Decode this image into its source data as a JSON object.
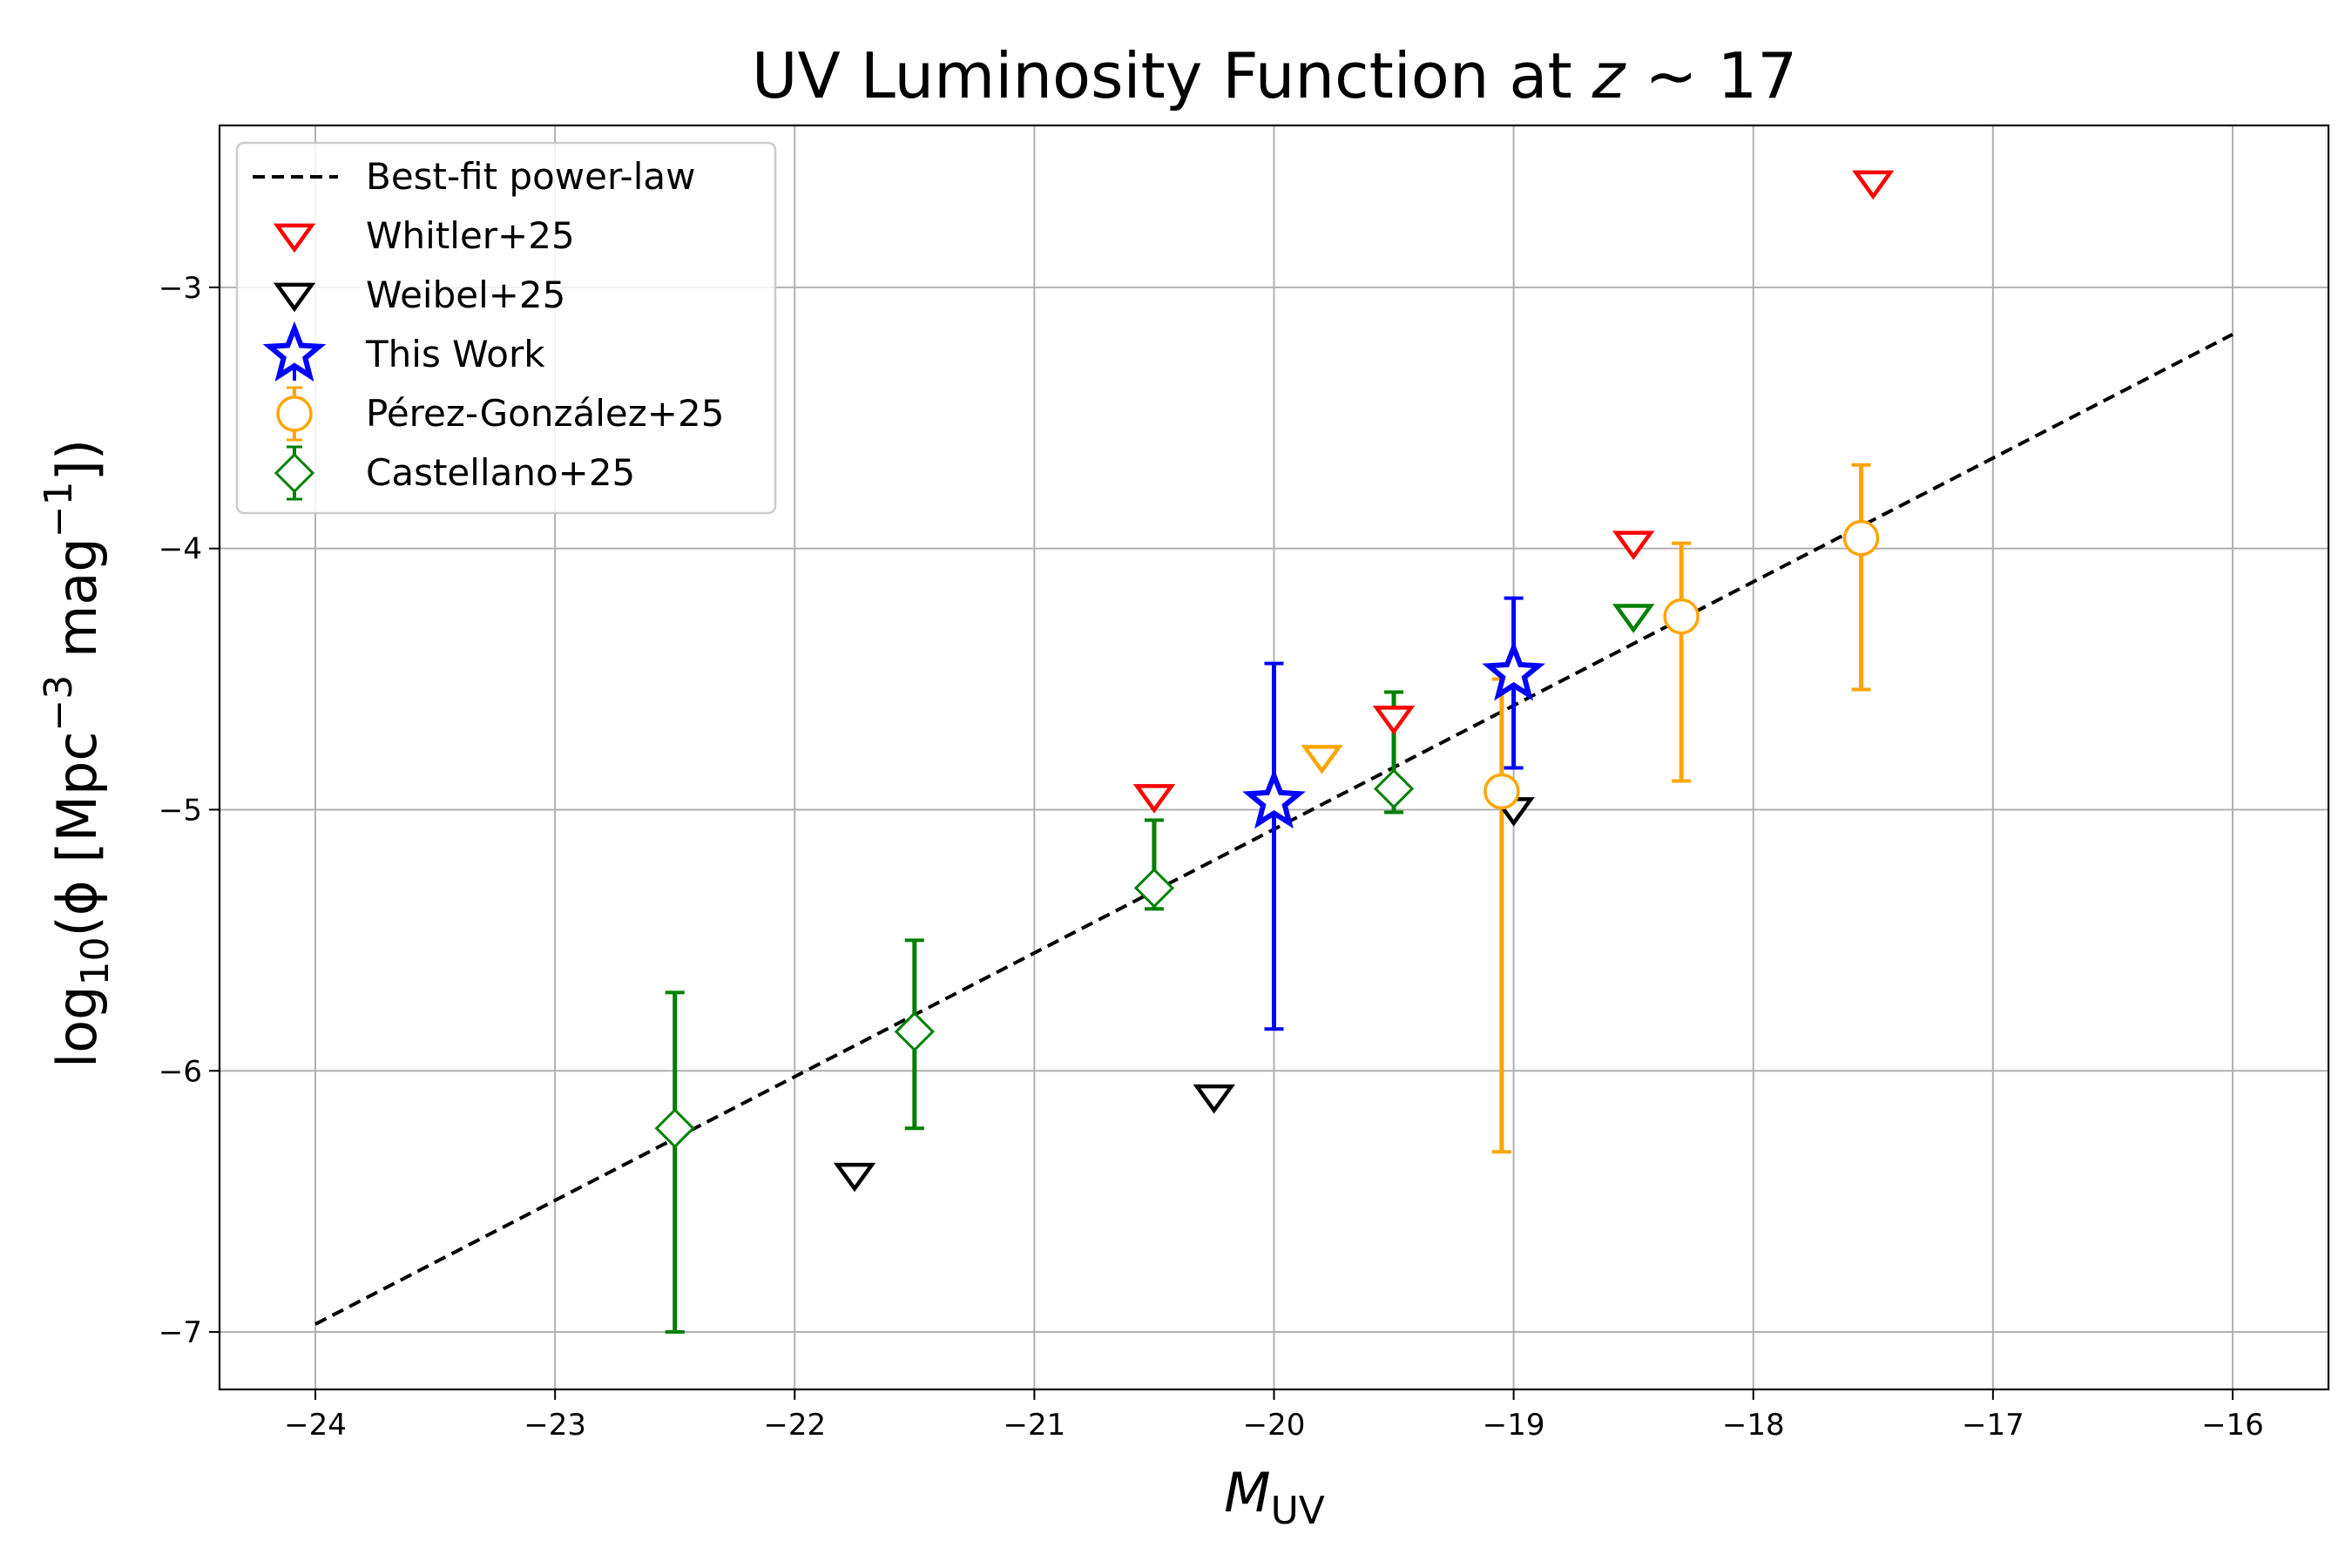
{
  "chart_data": {
    "type": "scatter",
    "title": "UV Luminosity Function at",
    "title_math": "z",
    "title_suffix": " ∼ 17",
    "xlabel": "M",
    "xlabel_sub": "UV",
    "ylabel_prefix": "log",
    "ylabel_sub": "10",
    "ylabel_body": "(ϕ [Mpc",
    "ylabel_sup1": "−3",
    "ylabel_mid": " mag",
    "ylabel_sup2": "−1",
    "ylabel_end": "])",
    "xlim": [
      -24.4,
      -15.6
    ],
    "ylim": [
      -7.22,
      -2.38
    ],
    "grid": true,
    "legend_position": "upper-left",
    "x_ticks": [
      -24,
      -23,
      -22,
      -21,
      -20,
      -19,
      -18,
      -17,
      -16
    ],
    "x_tick_labels": [
      "−24",
      "−23",
      "−22",
      "−21",
      "−20",
      "−19",
      "−18",
      "−17",
      "−16"
    ],
    "y_ticks": [
      -7,
      -6,
      -5,
      -4,
      -3
    ],
    "y_tick_labels": [
      "−7",
      "−6",
      "−5",
      "−4",
      "−3"
    ],
    "fit": {
      "name": "Best-fit power-law",
      "x": [
        -24,
        -16
      ],
      "y": [
        -6.97,
        -3.18
      ],
      "color": "#000000"
    },
    "series": [
      {
        "name": "Whitler+25",
        "marker": "triangle-down",
        "color": "#ff0000",
        "x": [
          -20.5,
          -19.5,
          -18.5,
          -17.5
        ],
        "y": [
          -4.95,
          -4.65,
          -3.98,
          -2.6
        ]
      },
      {
        "name": "Weibel+25",
        "marker": "triangle-down",
        "color": "#000000",
        "x": [
          -21.75,
          -20.25,
          -19.0
        ],
        "y": [
          -6.4,
          -6.1,
          -5.0
        ]
      },
      {
        "name": "This Work",
        "marker": "star",
        "color": "#0000ff",
        "x": [
          -20.0,
          -19.0
        ],
        "y": [
          -4.97,
          -4.48
        ],
        "yerr_low": [
          0.87,
          0.36
        ],
        "yerr_high": [
          0.53,
          0.29
        ]
      },
      {
        "name": "Pérez-González+25",
        "marker": "circle",
        "color": "#ffa500",
        "x": [
          -19.05,
          -18.3,
          -17.55
        ],
        "y": [
          -4.93,
          -4.26,
          -3.96
        ],
        "yerr_low": [
          1.38,
          0.63,
          0.58
        ],
        "yerr_high": [
          0.43,
          0.28,
          0.28
        ]
      },
      {
        "name": "Castellano+25",
        "marker": "diamond",
        "color": "#008000",
        "x": [
          -22.5,
          -21.5,
          -20.5,
          -19.5
        ],
        "y": [
          -6.22,
          -5.85,
          -5.3,
          -4.92
        ],
        "yerr_low": [
          0.78,
          0.37,
          0.08,
          0.09
        ],
        "yerr_high": [
          0.52,
          0.35,
          0.26,
          0.37
        ]
      }
    ],
    "extra_upper_limits": [
      {
        "color": "#ffa500",
        "x": -19.8,
        "y": -4.8
      },
      {
        "color": "#008000",
        "x": -18.5,
        "y": -4.26
      }
    ]
  }
}
